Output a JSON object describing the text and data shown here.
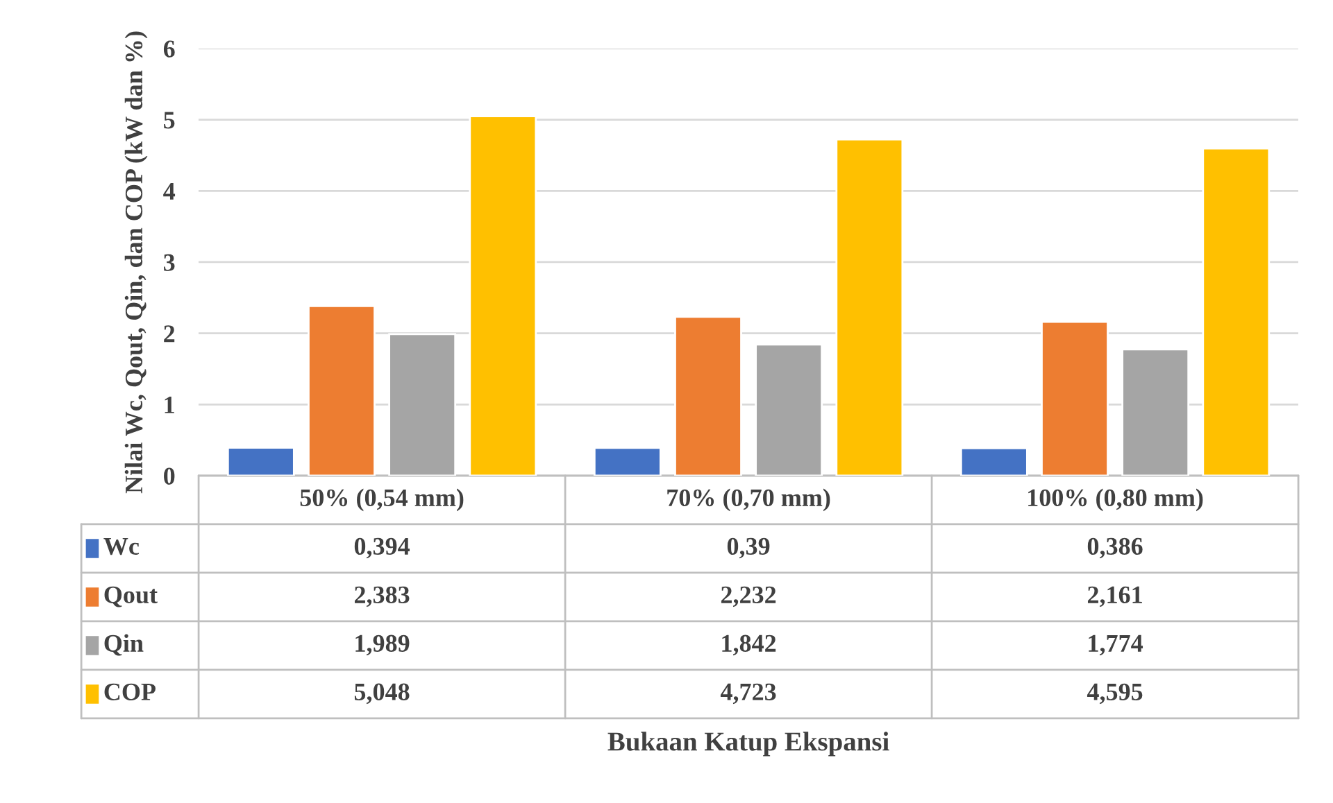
{
  "chart_data": {
    "type": "bar",
    "ylabel": "Nilai Wc, Qout, Qin, dan COP (kW dan %)",
    "annotations": [
      "Bukaan Katup Ekspansi"
    ],
    "categories": [
      "50% (0,54 mm)",
      "70% (0,70 mm)",
      "100% (0,80 mm)"
    ],
    "series": [
      {
        "name": "Wc",
        "color": "#4472c4",
        "values": [
          0.394,
          0.39,
          0.386
        ],
        "value_labels": [
          "0,394",
          "0,39",
          "0,386"
        ]
      },
      {
        "name": "Qout",
        "color": "#ed7d31",
        "values": [
          2.383,
          2.232,
          2.161
        ],
        "value_labels": [
          "2,383",
          "2,232",
          "2,161"
        ]
      },
      {
        "name": "Qin",
        "color": "#a5a5a5",
        "values": [
          1.989,
          1.842,
          1.774
        ],
        "value_labels": [
          "1,989",
          "1,842",
          "1,774"
        ]
      },
      {
        "name": "COP",
        "color": "#ffc000",
        "values": [
          5.048,
          4.723,
          4.595
        ],
        "value_labels": [
          "5,048",
          "4,723",
          "4,595"
        ]
      }
    ],
    "ylim": [
      0,
      6
    ],
    "yticks": [
      0,
      1,
      2,
      3,
      4,
      5,
      6
    ],
    "grid": "y",
    "legend": "bottom"
  }
}
